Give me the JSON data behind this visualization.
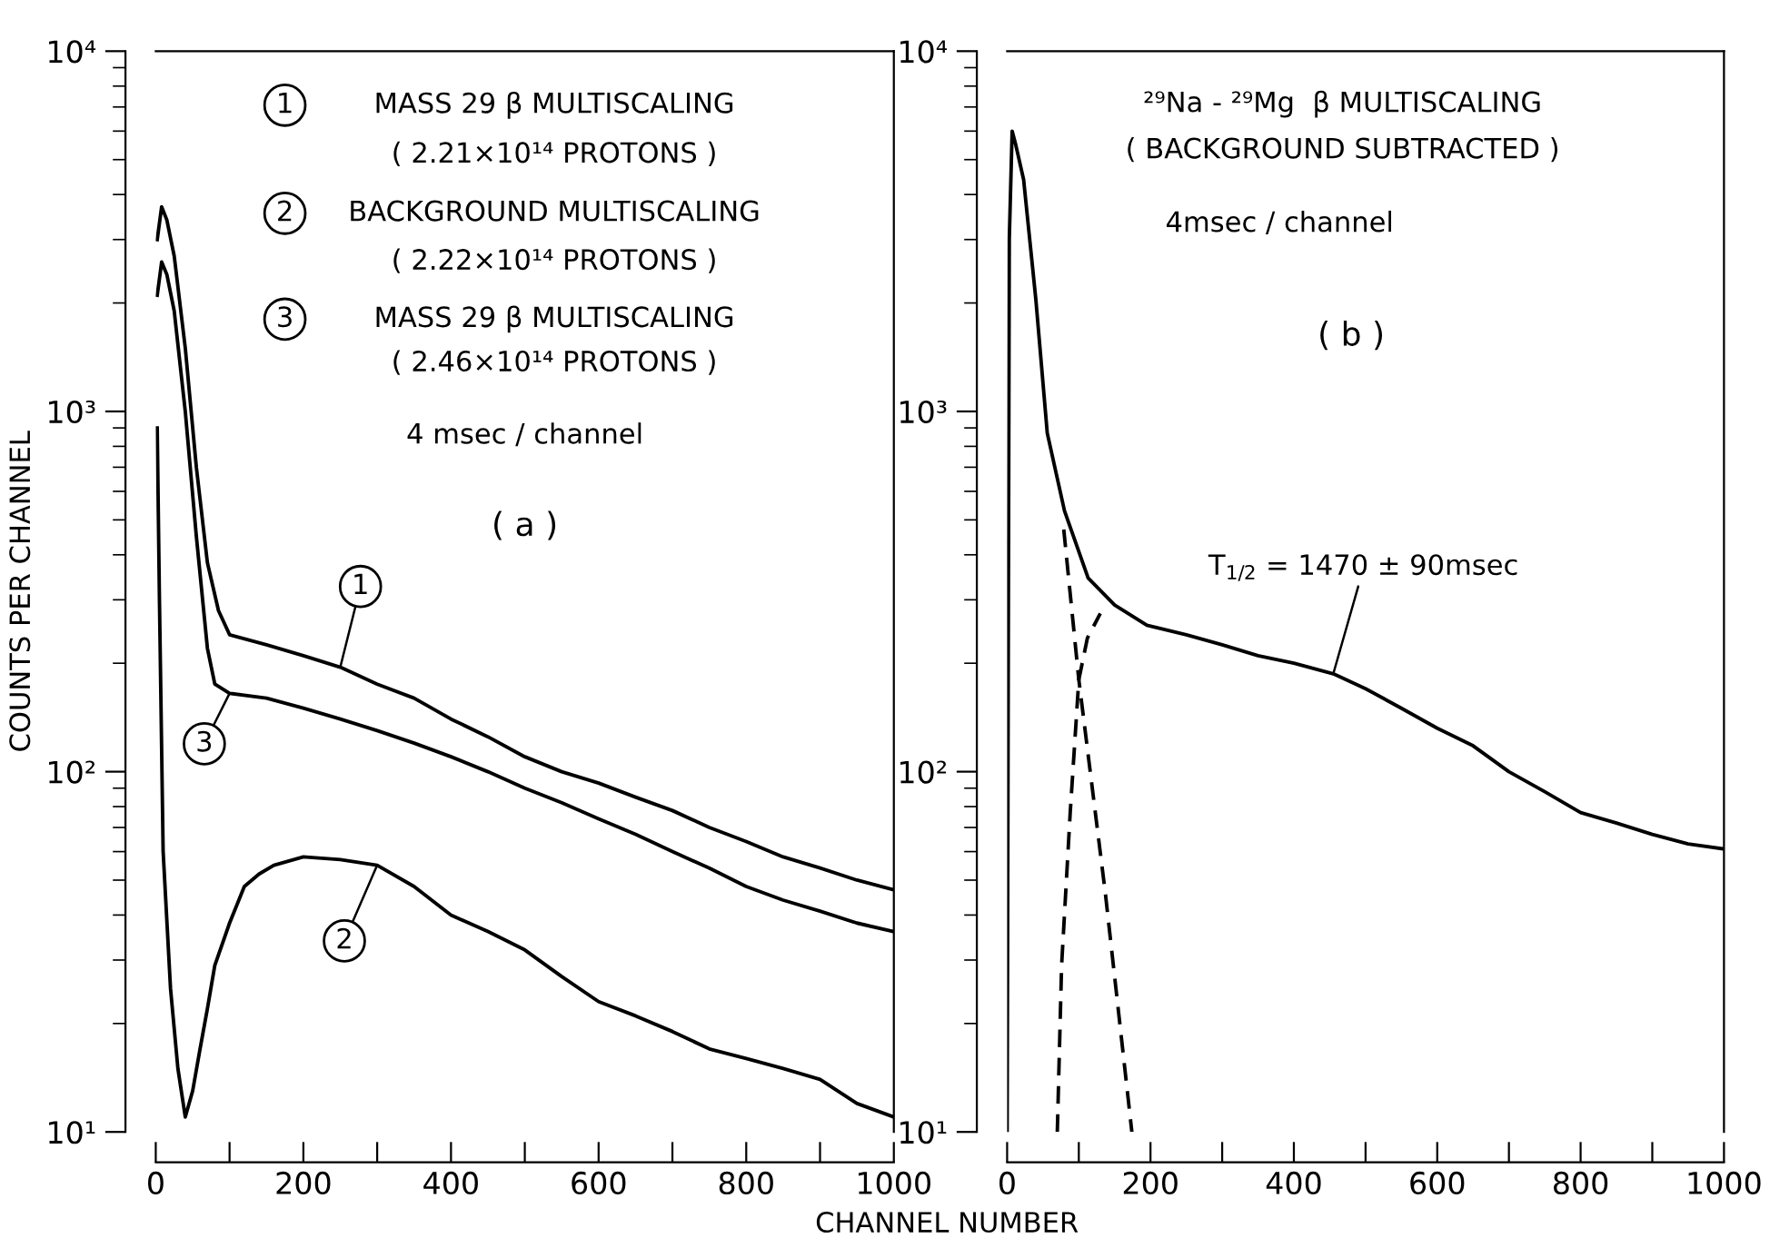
{
  "chart_data": [
    {
      "type": "line",
      "ylabel": "COUNTS PER CHANNEL",
      "xlabel": "CHANNEL NUMBER",
      "log": "y",
      "xlim": [
        0,
        1000
      ],
      "ylim": [
        10,
        10000
      ],
      "xticks": [
        0,
        {
          "value": 100,
          "label": null
        },
        200,
        {
          "value": 300,
          "label": null
        },
        400,
        {
          "value": 500,
          "label": null
        },
        600,
        {
          "value": 700,
          "label": null
        },
        800,
        {
          "value": 900,
          "label": null
        },
        1000
      ],
      "yticks": [
        {
          "value": 10,
          "label": "10¹"
        },
        {
          "value": 100,
          "label": "10²"
        },
        {
          "value": 1000,
          "label": "10³"
        },
        {
          "value": 10000,
          "label": "10⁴"
        }
      ],
      "grid": false,
      "legend": false,
      "series": [
        {
          "color": "#000000",
          "line_style": "solid",
          "x": [
            2,
            8,
            15,
            25,
            40,
            55,
            70,
            85,
            100,
            150,
            200,
            250,
            300,
            350,
            400,
            450,
            500,
            550,
            600,
            650,
            700,
            750,
            800,
            850,
            900,
            950,
            1000
          ],
          "values": [
            3000,
            3700,
            3400,
            2700,
            1500,
            700,
            380,
            280,
            240,
            225,
            210,
            195,
            175,
            160,
            140,
            125,
            110,
            100,
            93,
            85,
            78,
            70,
            64,
            58,
            54,
            50,
            47
          ]
        },
        {
          "color": "#000000",
          "line_style": "solid",
          "x": [
            2,
            5,
            10,
            20,
            30,
            40,
            50,
            60,
            70,
            80,
            100,
            120,
            140,
            160,
            200,
            250,
            300,
            350,
            400,
            450,
            500,
            550,
            600,
            650,
            700,
            750,
            800,
            850,
            900,
            950,
            1000
          ],
          "values": [
            900,
            300,
            60,
            25,
            15,
            11,
            13,
            17,
            22,
            29,
            38,
            48,
            52,
            55,
            58,
            57,
            55,
            48,
            40,
            36,
            32,
            27,
            23,
            21,
            19,
            17,
            16,
            15,
            14,
            12,
            11
          ]
        },
        {
          "color": "#000000",
          "line_style": "solid",
          "x": [
            2,
            8,
            15,
            25,
            40,
            55,
            70,
            80,
            100,
            150,
            200,
            250,
            300,
            350,
            400,
            450,
            500,
            550,
            600,
            650,
            700,
            750,
            800,
            850,
            900,
            950,
            1000
          ],
          "values": [
            2100,
            2600,
            2400,
            1900,
            1000,
            450,
            220,
            175,
            165,
            160,
            150,
            140,
            130,
            120,
            110,
            100,
            90,
            82,
            74,
            67,
            60,
            54,
            48,
            44,
            41,
            38,
            36
          ]
        }
      ],
      "annotations": [
        "1",
        "MASS 29 β MULTISCALING",
        "( 2.21×10¹⁴ PROTONS )",
        "2",
        "BACKGROUND MULTISCALING",
        "( 2.22×10¹⁴ PROTONS )",
        "3",
        "MASS 29 β MULTISCALING",
        "( 2.46×10¹⁴ PROTONS )",
        "4 msec / channel",
        "( a )",
        {
          "text": "1",
          "x": 250,
          "y": 195
        },
        {
          "text": "3",
          "x": 100,
          "y": 165
        },
        {
          "text": "2",
          "x": 300,
          "y": 55
        }
      ]
    },
    {
      "type": "line",
      "log": "y",
      "xlim": [
        0,
        1000
      ],
      "ylim": [
        10,
        10000
      ],
      "xticks": [
        0,
        {
          "value": 100,
          "label": null
        },
        200,
        {
          "value": 300,
          "label": null
        },
        400,
        {
          "value": 500,
          "label": null
        },
        600,
        {
          "value": 700,
          "label": null
        },
        800,
        {
          "value": 900,
          "label": null
        },
        1000
      ],
      "yticks": [
        {
          "value": 10,
          "label": "10¹"
        },
        {
          "value": 100,
          "label": "10²"
        },
        {
          "value": 1000,
          "label": "10³"
        },
        {
          "value": 10000,
          "label": "10⁴"
        }
      ],
      "grid": false,
      "legend": false,
      "series": [
        {
          "color": "#000000",
          "line_style": "solid",
          "x": [
            0,
            3,
            7,
            12,
            23,
            40,
            56,
            80,
            113,
            150,
            195,
            250,
            300,
            350,
            400,
            455,
            500,
            550,
            600,
            650,
            700,
            750,
            800,
            850,
            900,
            950,
            1000
          ],
          "values": [
            10,
            3000,
            6000,
            5500,
            4400,
            2050,
            870,
            530,
            345,
            290,
            255,
            240,
            225,
            210,
            200,
            187,
            170,
            150,
            132,
            118,
            100,
            88,
            77,
            72,
            67,
            63,
            61
          ]
        },
        {
          "color": "#000000",
          "line_style": "dashed",
          "x": [
            79,
            100,
            137,
            174
          ],
          "values": [
            470,
            180,
            46,
            10
          ]
        },
        {
          "color": "#000000",
          "line_style": "dashed",
          "x": [
            70,
            76,
            88,
            100,
            112,
            130
          ],
          "values": [
            10,
            29,
            77,
            180,
            235,
            275
          ]
        }
      ],
      "annotations": [
        "²⁹Na - ²⁹Mg  β MULTISCALING",
        "( BACKGROUND SUBTRACTED )",
        "4msec / channel",
        "( b )",
        {
          "text": "T$_{1/2}$ = 1470 ± 90msec",
          "x": 455,
          "y": 187
        }
      ]
    }
  ]
}
